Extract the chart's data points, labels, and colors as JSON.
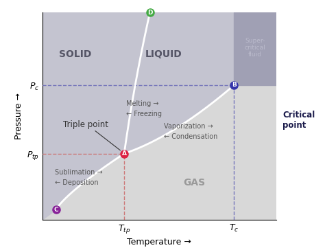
{
  "xlabel": "Temperature →",
  "ylabel": "Pressure →",
  "bg_color": "#ffffff",
  "solid_liquid_color": "#c4c4d0",
  "gas_color": "#d8d8d8",
  "supercritical_color": "#a0a0b4",
  "xlim": [
    0,
    10
  ],
  "ylim": [
    0,
    10
  ],
  "triple_point": [
    3.5,
    3.2
  ],
  "critical_point": [
    8.2,
    6.5
  ],
  "D_point_x": 4.6,
  "C_point": [
    0.6,
    0.5
  ],
  "Ptp": 3.2,
  "Pc": 6.5,
  "Ttp": 3.5,
  "Tc": 8.2,
  "line_color": "#ffffff",
  "dashed_blue": "#7777bb",
  "dashed_red": "#cc7777",
  "pt_A_color": "#dd2244",
  "pt_B_color": "#3333aa",
  "pt_D_color": "#44aa44",
  "pt_C_color": "#882299",
  "label_color": "#555566",
  "gas_label_color": "#999999",
  "annot_color": "#555555",
  "triple_label_color": "#333333",
  "critical_label_color": "#1a1a4a",
  "sc_text_color": "#bbbbcc"
}
